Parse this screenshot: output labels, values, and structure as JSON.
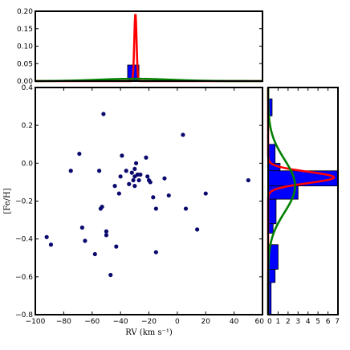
{
  "chart_data": [
    {
      "panel": "top",
      "type": "histogram",
      "xlim": [
        -100,
        60
      ],
      "ylim": [
        0,
        0.2
      ],
      "yticks": [
        "0.00",
        "0.05",
        "0.10",
        "0.15",
        "0.20"
      ],
      "bins": [
        {
          "x0": -55,
          "x1": -45,
          "value": 0.003
        },
        {
          "x0": -35,
          "x1": -27,
          "value": 0.046
        }
      ],
      "curves": [
        {
          "color": "#ff0000",
          "kind": "gaussian",
          "mean": -29.5,
          "sigma": 0.8,
          "amplitude": 0.193
        },
        {
          "color": "#008000",
          "kind": "gaussian",
          "mean": -30,
          "sigma": 25,
          "amplitude": 0.0065
        }
      ]
    },
    {
      "panel": "main",
      "type": "scatter",
      "xlabel": "RV (km s⁻¹)",
      "ylabel": "[Fe/H]",
      "xlim": [
        -100,
        60
      ],
      "ylim": [
        -0.8,
        0.4
      ],
      "xticks": [
        "−100",
        "−80",
        "−60",
        "−40",
        "−20",
        "0",
        "20",
        "40",
        "60"
      ],
      "yticks": [
        "−0.8",
        "−0.6",
        "−0.4",
        "−0.2",
        "0.0",
        "0.2",
        "0.4"
      ],
      "marker_color": "#0a0a6e",
      "points": [
        [
          -92,
          -0.39
        ],
        [
          -89,
          -0.43
        ],
        [
          -75,
          -0.04
        ],
        [
          -69,
          0.05
        ],
        [
          -67,
          -0.34
        ],
        [
          -65,
          -0.41
        ],
        [
          -58,
          -0.48
        ],
        [
          -55,
          -0.04
        ],
        [
          -54,
          -0.24
        ],
        [
          -53,
          -0.23
        ],
        [
          -52,
          0.26
        ],
        [
          -50,
          -0.36
        ],
        [
          -50,
          -0.38
        ],
        [
          -47,
          -0.59
        ],
        [
          -44,
          -0.12
        ],
        [
          -43,
          -0.44
        ],
        [
          -41,
          -0.16
        ],
        [
          -40,
          -0.07
        ],
        [
          -39,
          0.04
        ],
        [
          -36,
          -0.04
        ],
        [
          -34,
          -0.11
        ],
        [
          -32,
          -0.05
        ],
        [
          -31,
          -0.09
        ],
        [
          -30,
          -0.07
        ],
        [
          -30,
          -0.03
        ],
        [
          -30,
          -0.12
        ],
        [
          -29,
          0.0
        ],
        [
          -28,
          -0.06
        ],
        [
          -27,
          -0.09
        ],
        [
          -26,
          -0.06
        ],
        [
          -22,
          0.03
        ],
        [
          -21,
          -0.07
        ],
        [
          -20,
          -0.09
        ],
        [
          -19,
          -0.1
        ],
        [
          -17,
          -0.18
        ],
        [
          -15,
          -0.24
        ],
        [
          -15,
          -0.47
        ],
        [
          -9,
          -0.08
        ],
        [
          -6,
          -0.17
        ],
        [
          4,
          0.15
        ],
        [
          6,
          -0.24
        ],
        [
          14,
          -0.35
        ],
        [
          20,
          -0.16
        ],
        [
          50,
          -0.09
        ]
      ]
    },
    {
      "panel": "right",
      "type": "histogram",
      "orientation": "horizontal",
      "xlim": [
        0,
        7
      ],
      "ylim": [
        -0.8,
        0.4
      ],
      "xticks": [
        "0",
        "1",
        "2",
        "3",
        "4",
        "5",
        "6",
        "7"
      ],
      "bins": [
        {
          "y0": 0.25,
          "y1": 0.34,
          "value": 0.4
        },
        {
          "y0": 0.0,
          "y1": 0.1,
          "value": 0.7
        },
        {
          "y0": -0.04,
          "y1": 0.0,
          "value": 1.2
        },
        {
          "y0": -0.12,
          "y1": -0.04,
          "value": 7.0
        },
        {
          "y0": -0.19,
          "y1": -0.12,
          "value": 3.0
        },
        {
          "y0": -0.32,
          "y1": -0.19,
          "value": 0.8
        },
        {
          "y0": -0.37,
          "y1": -0.32,
          "value": 0.5
        },
        {
          "y0": -0.56,
          "y1": -0.43,
          "value": 1.0
        },
        {
          "y0": -0.63,
          "y1": -0.56,
          "value": 0.7
        },
        {
          "y0": -0.8,
          "y1": -0.63,
          "value": 0.3
        }
      ],
      "curves": [
        {
          "color": "#ff0000",
          "kind": "gaussian",
          "mean": -0.075,
          "sigma": 0.03,
          "amplitude": 6.6
        },
        {
          "color": "#008000",
          "kind": "gaussian",
          "mean": -0.12,
          "sigma": 0.14,
          "amplitude": 2.7
        }
      ]
    }
  ]
}
